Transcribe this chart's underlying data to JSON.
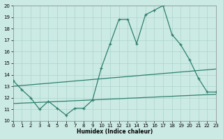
{
  "xlabel": "Humidex (Indice chaleur)",
  "x": [
    0,
    1,
    2,
    3,
    4,
    5,
    6,
    7,
    8,
    9,
    10,
    11,
    12,
    13,
    14,
    15,
    16,
    17,
    18,
    19,
    20,
    21,
    22,
    23
  ],
  "line_main": [
    13.5,
    12.7,
    12.0,
    11.0,
    11.7,
    11.1,
    10.5,
    11.1,
    11.1,
    11.8,
    14.6,
    16.7,
    18.8,
    18.8,
    16.7,
    19.2,
    19.6,
    20.0,
    17.5,
    16.6,
    15.3,
    13.7,
    12.5,
    12.5
  ],
  "line_trend1": [
    13.0,
    13.07,
    13.13,
    13.2,
    13.26,
    13.33,
    13.39,
    13.46,
    13.52,
    13.59,
    13.65,
    13.72,
    13.78,
    13.85,
    13.91,
    13.98,
    14.04,
    14.11,
    14.17,
    14.24,
    14.3,
    14.37,
    14.43,
    14.5
  ],
  "line_trend2": [
    11.5,
    11.54,
    11.57,
    11.61,
    11.64,
    11.68,
    11.71,
    11.75,
    11.78,
    11.82,
    11.85,
    11.89,
    11.92,
    11.96,
    11.99,
    12.03,
    12.06,
    12.1,
    12.13,
    12.17,
    12.2,
    12.24,
    12.27,
    12.3
  ],
  "line_color": "#2d7f6e",
  "bg_color": "#cceae4",
  "grid_color": "#aad4cc",
  "ylim": [
    10,
    20
  ],
  "xlim": [
    0,
    23
  ],
  "yticks": [
    10,
    11,
    12,
    13,
    14,
    15,
    16,
    17,
    18,
    19,
    20
  ],
  "xticks": [
    0,
    1,
    2,
    3,
    4,
    5,
    6,
    7,
    8,
    9,
    10,
    11,
    12,
    13,
    14,
    15,
    16,
    17,
    18,
    19,
    20,
    21,
    22,
    23
  ]
}
